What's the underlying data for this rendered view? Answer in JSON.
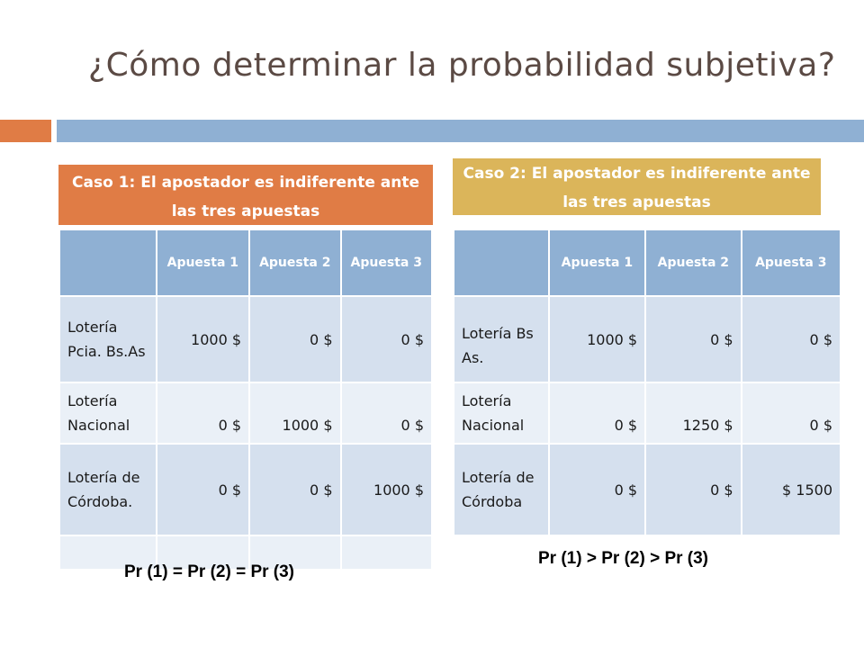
{
  "title": "¿Cómo determinar la probabilidad subjetiva?",
  "colors": {
    "accent_orange": "#e07c45",
    "accent_blue": "#8fb0d3",
    "accent_gold": "#dbb55a"
  },
  "case1": {
    "header": "Caso 1:  El apostador es indiferente ante las tres apuestas",
    "columns": [
      "",
      "Apuesta 1",
      "Apuesta 2",
      "Apuesta 3"
    ],
    "rows": [
      [
        "Lotería Pcia. Bs.As",
        "1000 $",
        "0 $",
        "0 $"
      ],
      [
        "Lotería Nacional",
        "0 $",
        "1000 $",
        "0 $"
      ],
      [
        "Lotería de Córdoba.",
        "0 $",
        "0 $",
        "1000 $"
      ],
      [
        "",
        "",
        "",
        ""
      ]
    ],
    "formula": "Pr (1) = Pr (2) = Pr (3)"
  },
  "case2": {
    "header": "Caso 2: El apostador es indiferente ante las tres apuestas",
    "columns": [
      "",
      "Apuesta 1",
      "Apuesta 2",
      "Apuesta 3"
    ],
    "rows": [
      [
        "Lotería Bs As.",
        "1000 $",
        "0 $",
        "0 $"
      ],
      [
        "Lotería Nacional",
        "0 $",
        "1250 $",
        "0 $"
      ],
      [
        "Lotería de Córdoba",
        "0 $",
        "0 $",
        "$ 1500"
      ]
    ],
    "formula": "Pr (1) > Pr (2) > Pr (3)"
  }
}
